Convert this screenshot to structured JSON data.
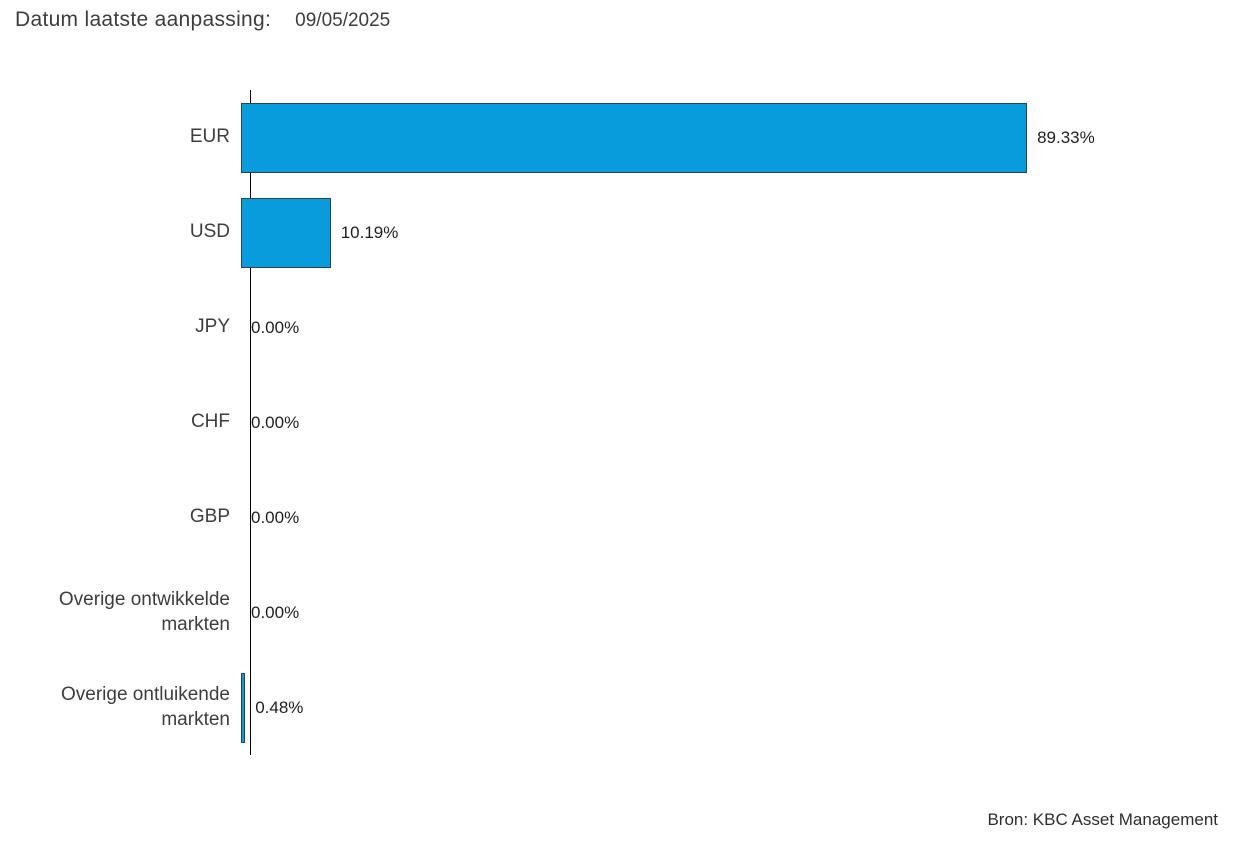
{
  "header": {
    "label": "Datum laatste aanpassing:",
    "date": "09/05/2025"
  },
  "footer": {
    "source": "Bron: KBC Asset Management"
  },
  "chart_data": {
    "type": "bar",
    "orientation": "horizontal",
    "title": "",
    "xlabel": "",
    "ylabel": "",
    "xlim": [
      0,
      100
    ],
    "grid": false,
    "legend": false,
    "categories": [
      "EUR",
      "USD",
      "JPY",
      "CHF",
      "GBP",
      "Overige ontwikkelde markten",
      "Overige ontluikende markten"
    ],
    "values": [
      89.33,
      10.19,
      0.0,
      0.0,
      0.0,
      0.0,
      0.48
    ],
    "value_labels": [
      "89.33%",
      "10.19%",
      "0.00%",
      "0.00%",
      "0.00%",
      "0.00%",
      "0.48%"
    ],
    "bar_color": "#089cdc",
    "bar_border_color": "#2e4053",
    "axis_color": "#000000"
  }
}
